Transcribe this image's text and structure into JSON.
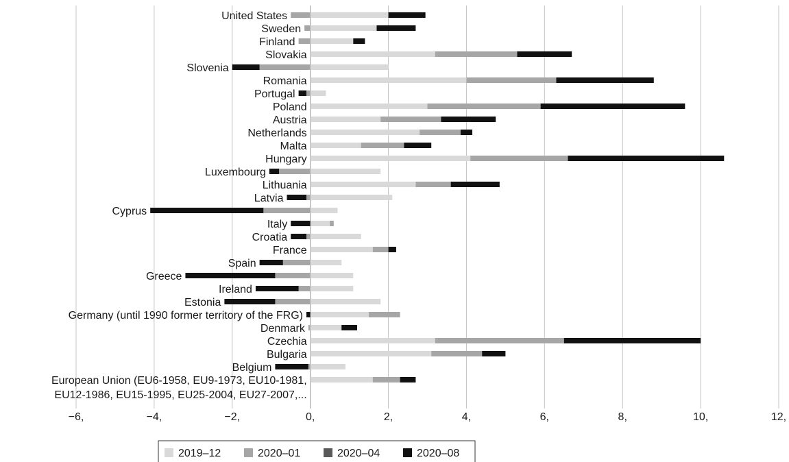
{
  "chart_data": {
    "type": "bar",
    "orientation": "horizontal",
    "stacked": true,
    "xlim": [
      -6,
      12
    ],
    "x_ticks": [
      -6,
      -4,
      -2,
      0,
      2,
      4,
      6,
      8,
      10,
      12
    ],
    "x_tick_labels": [
      "−6,",
      "−4,",
      "−2,",
      "0,",
      "2,",
      "4,",
      "6,",
      "8,",
      "10,",
      "12,"
    ],
    "grid": true,
    "legend_position": "bottom",
    "categories": [
      {
        "label": [
          "United States"
        ],
        "values": [
          2.0,
          -0.5,
          0,
          0.95
        ]
      },
      {
        "label": [
          "Sweden"
        ],
        "values": [
          1.7,
          -0.15,
          0,
          1.0
        ]
      },
      {
        "label": [
          "Finland"
        ],
        "values": [
          1.1,
          -0.3,
          0,
          0.3
        ]
      },
      {
        "label": [
          "Slovakia"
        ],
        "values": [
          3.2,
          2.1,
          0,
          1.4
        ]
      },
      {
        "label": [
          "Slovenia"
        ],
        "values": [
          2.0,
          -1.3,
          0,
          -0.7
        ]
      },
      {
        "label": [
          "Romania"
        ],
        "values": [
          4.0,
          2.3,
          0,
          2.5
        ]
      },
      {
        "label": [
          "Portugal"
        ],
        "values": [
          0.4,
          -0.1,
          0,
          -0.2
        ]
      },
      {
        "label": [
          "Poland"
        ],
        "values": [
          3.0,
          2.9,
          0,
          3.7
        ]
      },
      {
        "label": [
          "Austria"
        ],
        "values": [
          1.8,
          1.55,
          0,
          1.4
        ]
      },
      {
        "label": [
          "Netherlands"
        ],
        "values": [
          2.8,
          1.05,
          0,
          0.3
        ]
      },
      {
        "label": [
          "Malta"
        ],
        "values": [
          1.3,
          1.1,
          0,
          0.7
        ]
      },
      {
        "label": [
          "Hungary"
        ],
        "values": [
          4.1,
          2.5,
          0,
          4.0
        ]
      },
      {
        "label": [
          "Luxembourg"
        ],
        "values": [
          1.8,
          -0.8,
          0,
          -0.25
        ]
      },
      {
        "label": [
          "Lithuania"
        ],
        "values": [
          2.7,
          0.9,
          0,
          1.25
        ]
      },
      {
        "label": [
          "Latvia"
        ],
        "values": [
          2.1,
          -0.1,
          0,
          -0.5
        ]
      },
      {
        "label": [
          "Cyprus"
        ],
        "values": [
          0.7,
          -1.2,
          0,
          -2.9
        ]
      },
      {
        "label": [
          "Italy"
        ],
        "values": [
          0.5,
          0.1,
          0,
          -0.5
        ]
      },
      {
        "label": [
          "Croatia"
        ],
        "values": [
          1.3,
          -0.1,
          0,
          -0.4
        ]
      },
      {
        "label": [
          "France"
        ],
        "values": [
          1.6,
          0.4,
          0,
          0.2
        ]
      },
      {
        "label": [
          "Spain"
        ],
        "values": [
          0.8,
          -0.7,
          0,
          -0.6
        ]
      },
      {
        "label": [
          "Greece"
        ],
        "values": [
          1.1,
          -0.9,
          0,
          -2.3
        ]
      },
      {
        "label": [
          "Ireland"
        ],
        "values": [
          1.1,
          -0.3,
          0,
          -1.1
        ]
      },
      {
        "label": [
          "Estonia"
        ],
        "values": [
          1.8,
          -0.9,
          0,
          -1.3
        ]
      },
      {
        "label": [
          "Germany (until 1990 former territory of the FRG)"
        ],
        "values": [
          1.5,
          0.8,
          0,
          -0.1
        ]
      },
      {
        "label": [
          "Denmark"
        ],
        "values": [
          0.8,
          -0.05,
          0,
          0.4
        ]
      },
      {
        "label": [
          "Czechia"
        ],
        "values": [
          3.2,
          3.3,
          0,
          3.5
        ]
      },
      {
        "label": [
          "Bulgaria"
        ],
        "values": [
          3.1,
          1.3,
          0,
          0.6
        ]
      },
      {
        "label": [
          "Belgium"
        ],
        "values": [
          0.9,
          -0.05,
          0,
          -0.85
        ]
      },
      {
        "label": [
          "European Union (EU6-1958, EU9-1973, EU10-1981,",
          "EU12-1986, EU15-1995, EU25-2004, EU27-2007,..."
        ],
        "values": [
          1.6,
          0.7,
          0,
          0.4
        ]
      }
    ],
    "series": [
      {
        "name": "2019‒12",
        "color": "#d9d9d9"
      },
      {
        "name": "2020‒01",
        "color": "#a6a6a6"
      },
      {
        "name": "2020‒04",
        "color": "#595959"
      },
      {
        "name": "2020‒08",
        "color": "#111111"
      }
    ]
  }
}
